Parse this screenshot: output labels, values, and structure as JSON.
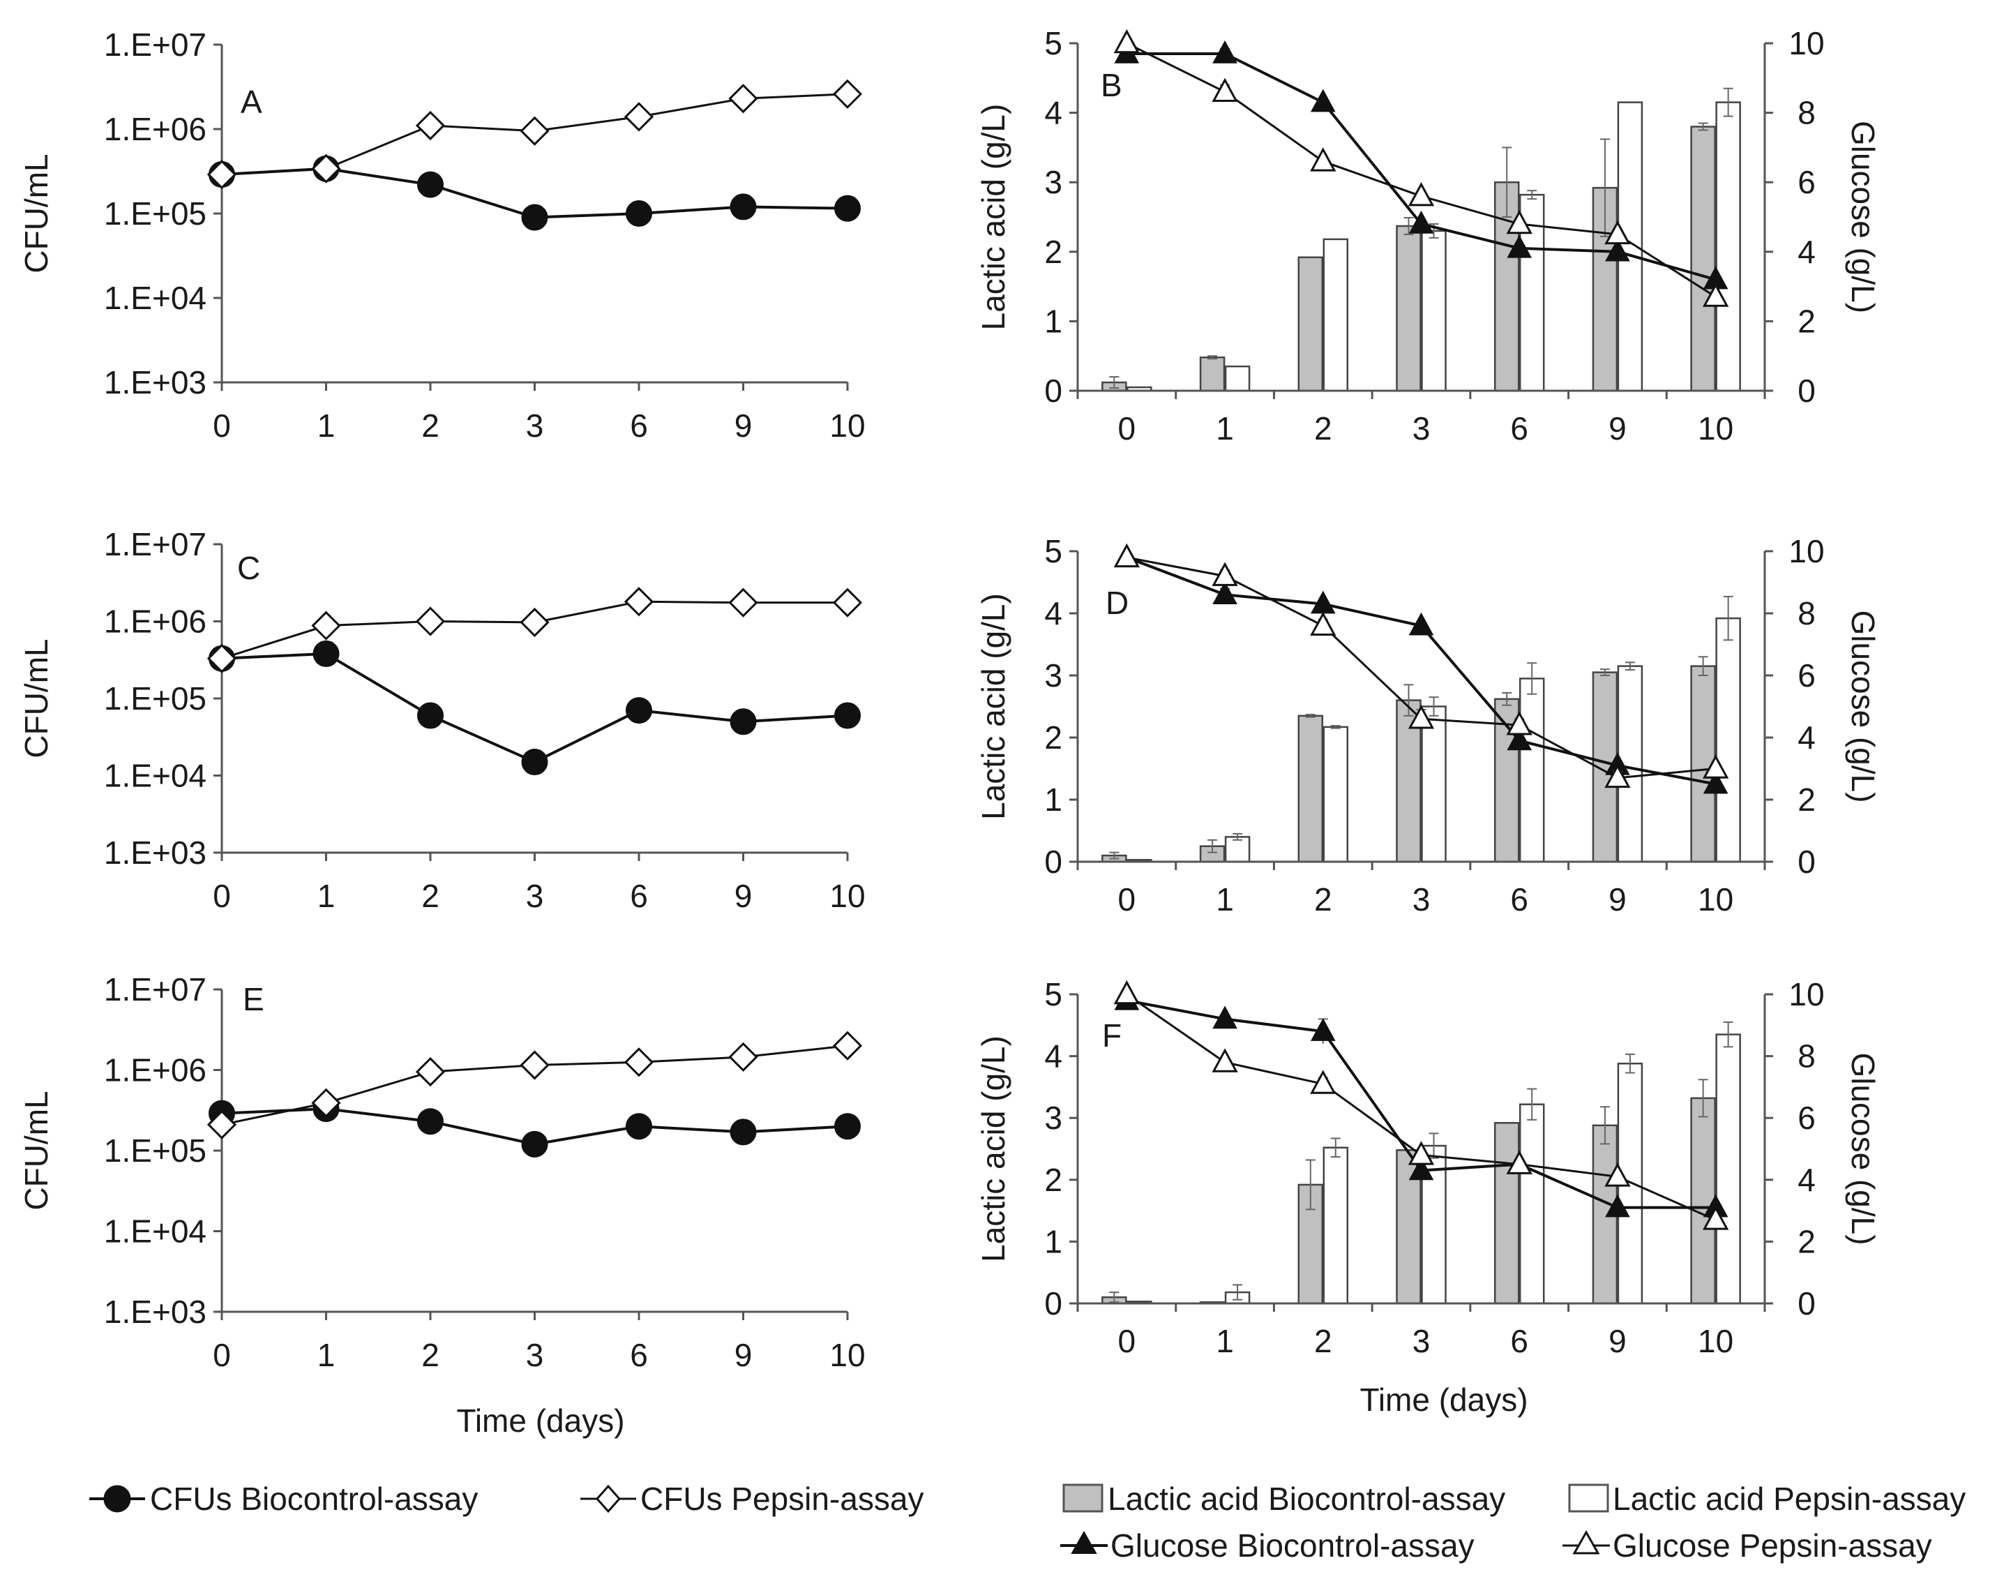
{
  "figure": {
    "x_title": "Time (days)",
    "colors": {
      "line": "#111111",
      "bar_bio": "#c0c0c0",
      "bar_pep": "#ffffff",
      "marker_open": "#ffffff",
      "marker_filled": "#111111"
    }
  },
  "legend": {
    "cfu_bio": "CFUs Biocontrol-assay",
    "cfu_pep": "CFUs Pepsin-assay",
    "lactic_bio": "Lactic acid Biocontrol-assay",
    "lactic_pep": "Lactic acid Pepsin-assay",
    "glucose_bio": "Glucose Biocontrol-assay",
    "glucose_pep": "Glucose Pepsin-assay"
  },
  "chart_data": [
    {
      "panel": "A",
      "type": "line",
      "ylabel": "CFU/mL",
      "xlabel": "",
      "yscale": "log",
      "ylim": [
        1000,
        10000000
      ],
      "yticks": [
        "1.E+03",
        "1.E+04",
        "1.E+05",
        "1.E+06",
        "1.E+07"
      ],
      "categories": [
        "0",
        "1",
        "2",
        "3",
        "6",
        "9",
        "10"
      ],
      "series": [
        {
          "name": "CFUs Biocontrol-assay",
          "values": [
            290000,
            340000,
            220000,
            90000,
            100000,
            120000,
            115000
          ]
        },
        {
          "name": "CFUs Pepsin-assay",
          "values": [
            290000,
            340000,
            1100000,
            950000,
            1400000,
            2300000,
            2600000
          ]
        }
      ]
    },
    {
      "panel": "B",
      "type": "bar",
      "ylabel": "Lactic acid (g/L)",
      "y2label": "Glucose (g/L)",
      "ylim": [
        0,
        5
      ],
      "y2lim": [
        0,
        10
      ],
      "yticks": [
        "0",
        "1",
        "2",
        "3",
        "4",
        "5"
      ],
      "y2ticks": [
        "0",
        "2",
        "4",
        "6",
        "8",
        "10"
      ],
      "categories": [
        "0",
        "1",
        "2",
        "3",
        "6",
        "9",
        "10"
      ],
      "bar_series": [
        {
          "name": "Lactic acid Biocontrol-assay",
          "values": [
            0.12,
            0.48,
            1.92,
            2.37,
            3.0,
            2.92,
            3.8
          ],
          "errors": [
            0.08,
            0.02,
            0.0,
            0.12,
            0.5,
            0.7,
            0.05
          ]
        },
        {
          "name": "Lactic acid Pepsin-assay",
          "values": [
            0.05,
            0.35,
            2.18,
            2.3,
            2.82,
            4.15,
            4.15
          ],
          "errors": [
            0.0,
            0.0,
            0.0,
            0.1,
            0.06,
            0.0,
            0.2
          ]
        }
      ],
      "line_series": [
        {
          "name": "Glucose Biocontrol-assay",
          "values": [
            9.7,
            9.7,
            8.3,
            4.8,
            4.1,
            4.0,
            3.2
          ],
          "errors": [
            0,
            0.15,
            0.1,
            0,
            0,
            0,
            0
          ]
        },
        {
          "name": "Glucose Pepsin-assay",
          "values": [
            10.0,
            8.6,
            6.6,
            5.6,
            4.8,
            4.5,
            2.7
          ],
          "errors": [
            0,
            0.2,
            0,
            0,
            0,
            0,
            0
          ]
        }
      ]
    },
    {
      "panel": "C",
      "type": "line",
      "ylabel": "CFU/mL",
      "xlabel": "",
      "yscale": "log",
      "ylim": [
        1000,
        10000000
      ],
      "yticks": [
        "1.E+03",
        "1.E+04",
        "1.E+05",
        "1.E+06",
        "1.E+07"
      ],
      "categories": [
        "0",
        "1",
        "2",
        "3",
        "6",
        "9",
        "10"
      ],
      "series": [
        {
          "name": "CFUs Biocontrol-assay",
          "values": [
            330000,
            380000,
            60000,
            15000,
            70000,
            50000,
            60000
          ]
        },
        {
          "name": "CFUs Pepsin-assay",
          "values": [
            330000,
            880000,
            1000000,
            970000,
            1800000,
            1750000,
            1750000
          ]
        }
      ]
    },
    {
      "panel": "D",
      "type": "bar",
      "ylabel": "Lactic acid (g/L)",
      "y2label": "Glucose (g/L)",
      "ylim": [
        0,
        5
      ],
      "y2lim": [
        0,
        10
      ],
      "yticks": [
        "0",
        "1",
        "2",
        "3",
        "4",
        "5"
      ],
      "y2ticks": [
        "0",
        "2",
        "4",
        "6",
        "8",
        "10"
      ],
      "categories": [
        "0",
        "1",
        "2",
        "3",
        "6",
        "9",
        "10"
      ],
      "bar_series": [
        {
          "name": "Lactic acid Biocontrol-assay",
          "values": [
            0.1,
            0.25,
            2.35,
            2.6,
            2.62,
            3.05,
            3.15
          ],
          "errors": [
            0.05,
            0.1,
            0.02,
            0.25,
            0.1,
            0.05,
            0.15
          ]
        },
        {
          "name": "Lactic acid Pepsin-assay",
          "values": [
            0.03,
            0.4,
            2.17,
            2.5,
            2.95,
            3.15,
            3.92
          ],
          "errors": [
            0.0,
            0.05,
            0.02,
            0.15,
            0.25,
            0.06,
            0.35
          ]
        }
      ],
      "line_series": [
        {
          "name": "Glucose Biocontrol-assay",
          "values": [
            9.8,
            8.6,
            8.3,
            7.6,
            3.9,
            3.1,
            2.5
          ],
          "errors": [
            0,
            0.2,
            0,
            0,
            0,
            0,
            0
          ]
        },
        {
          "name": "Glucose Pepsin-assay",
          "values": [
            9.8,
            9.2,
            7.6,
            4.6,
            4.4,
            2.7,
            3.0
          ],
          "errors": [
            0,
            0.2,
            0.2,
            0.3,
            0.2,
            0.2,
            0
          ]
        }
      ]
    },
    {
      "panel": "E",
      "type": "line",
      "ylabel": "CFU/mL",
      "xlabel": "Time (days)",
      "yscale": "log",
      "ylim": [
        1000,
        10000000
      ],
      "yticks": [
        "1.E+03",
        "1.E+04",
        "1.E+05",
        "1.E+06",
        "1.E+07"
      ],
      "categories": [
        "0",
        "1",
        "2",
        "3",
        "6",
        "9",
        "10"
      ],
      "series": [
        {
          "name": "CFUs Biocontrol-assay",
          "values": [
            290000,
            330000,
            230000,
            120000,
            200000,
            170000,
            200000
          ]
        },
        {
          "name": "CFUs Pepsin-assay",
          "values": [
            210000,
            390000,
            950000,
            1150000,
            1250000,
            1450000,
            2000000
          ]
        }
      ]
    },
    {
      "panel": "F",
      "type": "bar",
      "ylabel": "Lactic acid (g/L)",
      "y2label": "Glucose (g/L)",
      "xlabel": "Time (days)",
      "ylim": [
        0,
        5
      ],
      "y2lim": [
        0,
        10
      ],
      "yticks": [
        "0",
        "1",
        "2",
        "3",
        "4",
        "5"
      ],
      "y2ticks": [
        "0",
        "2",
        "4",
        "6",
        "8",
        "10"
      ],
      "categories": [
        "0",
        "1",
        "2",
        "3",
        "6",
        "9",
        "10"
      ],
      "bar_series": [
        {
          "name": "Lactic acid Biocontrol-assay",
          "values": [
            0.1,
            0.02,
            1.92,
            2.48,
            2.92,
            2.88,
            3.32
          ],
          "errors": [
            0.08,
            0.0,
            0.4,
            0.0,
            0.0,
            0.3,
            0.3
          ]
        },
        {
          "name": "Lactic acid Pepsin-assay",
          "values": [
            0.03,
            0.18,
            2.52,
            2.55,
            3.22,
            3.88,
            4.35
          ],
          "errors": [
            0.0,
            0.12,
            0.15,
            0.2,
            0.25,
            0.15,
            0.2
          ]
        }
      ],
      "line_series": [
        {
          "name": "Glucose Biocontrol-assay",
          "values": [
            9.8,
            9.2,
            8.8,
            4.3,
            4.5,
            3.1,
            3.1
          ],
          "errors": [
            0,
            0.1,
            0.4,
            0,
            0,
            0,
            0
          ]
        },
        {
          "name": "Glucose Pepsin-assay",
          "values": [
            10.0,
            7.8,
            7.1,
            4.8,
            4.5,
            4.1,
            2.7
          ],
          "errors": [
            0,
            0.1,
            0.2,
            0,
            0,
            0,
            0
          ]
        }
      ]
    }
  ]
}
